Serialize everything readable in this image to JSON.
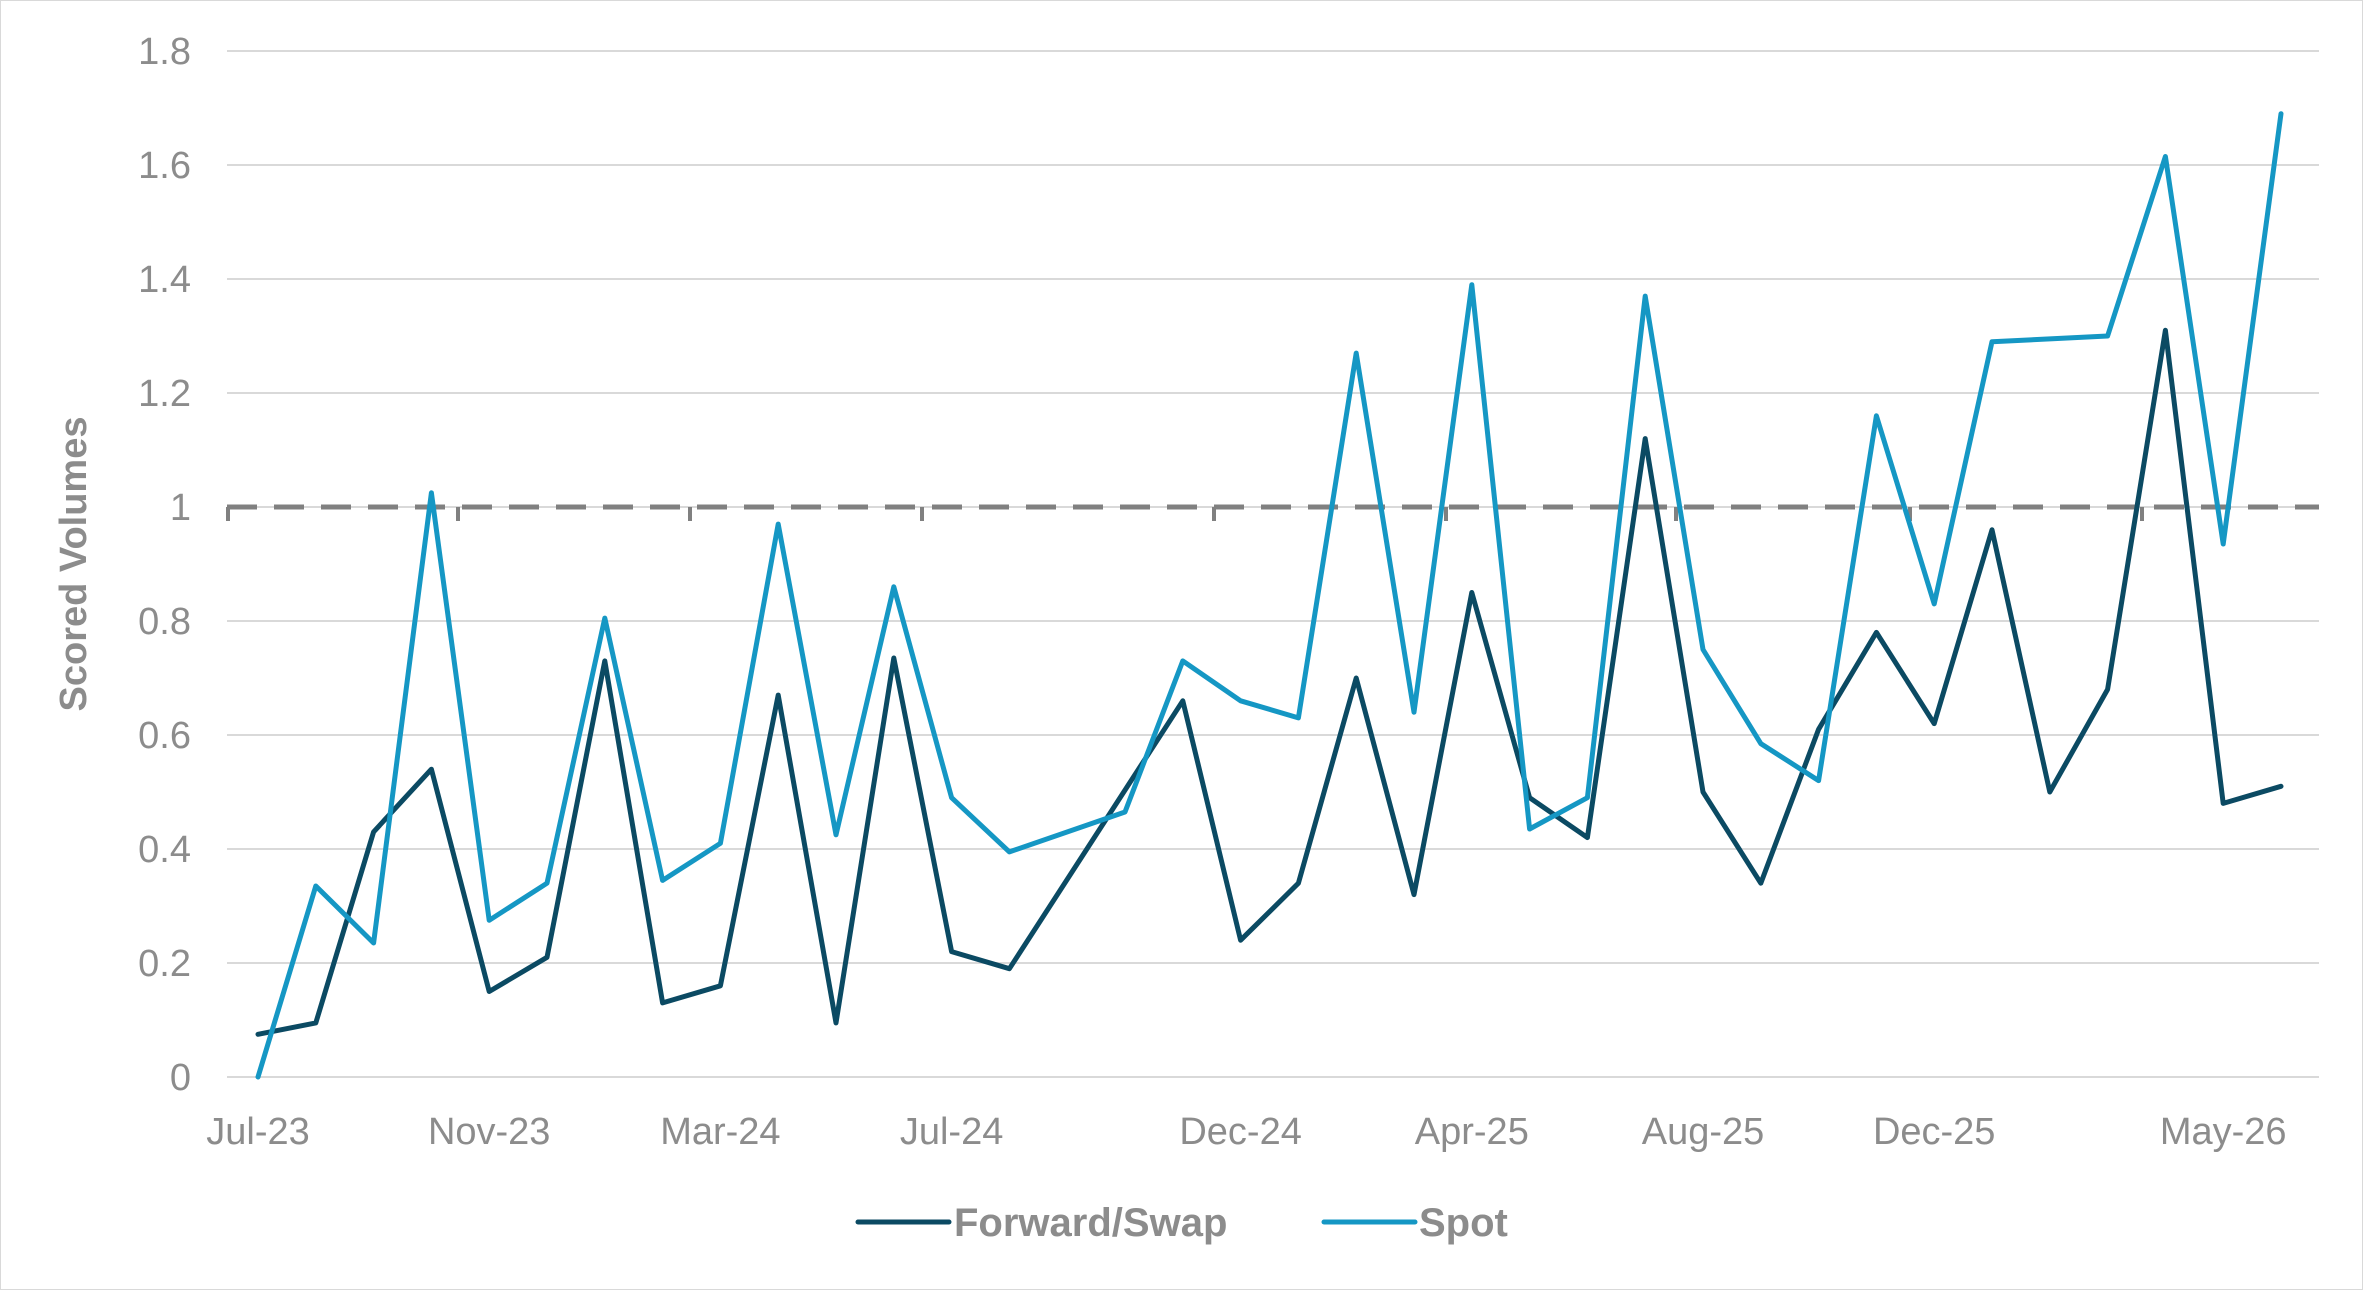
{
  "colors": {
    "forward_swap": "#0b4a63",
    "spot": "#1597c4",
    "gridline": "#d9d9d9",
    "threshold": "#808080",
    "text": "#8c8c8c"
  },
  "chart_data": {
    "type": "line",
    "title": "",
    "ylabel": "Scored Volumes",
    "xlabel": "",
    "ylim": [
      0,
      1.8
    ],
    "yticks": [
      0,
      0.2,
      0.4,
      0.6,
      0.8,
      1,
      1.2,
      1.4,
      1.6,
      1.8
    ],
    "ytick_labels": [
      "0",
      "0.2",
      "0.4",
      "0.6",
      "0.8",
      "1",
      "1.2",
      "1.4",
      "1.6",
      "1.8"
    ],
    "x_tick_labels": [
      {
        "label": "Jul-23",
        "index": 0
      },
      {
        "label": "Nov-23",
        "index": 4
      },
      {
        "label": "Mar-24",
        "index": 8
      },
      {
        "label": "Jul-24",
        "index": 12
      },
      {
        "label": "Dec-24",
        "index": 17
      },
      {
        "label": "Apr-25",
        "index": 21
      },
      {
        "label": "Aug-25",
        "index": 25
      },
      {
        "label": "Dec-25",
        "index": 29
      },
      {
        "label": "May-26",
        "index": 34
      }
    ],
    "x": [
      "Jul-23",
      "Aug-23",
      "Sep-23",
      "Oct-23",
      "Nov-23",
      "Dec-23",
      "Jan-24",
      "Feb-24",
      "Mar-24",
      "Apr-24",
      "May-24",
      "Jun-24",
      "Jul-24",
      "Aug-24",
      "Sep-24",
      "Oct-24",
      "Nov-24",
      "Dec-24",
      "Jan-25",
      "Feb-25",
      "Mar-25",
      "Apr-25",
      "May-25",
      "Jun-25",
      "Jul-25",
      "Aug-25",
      "Sep-25",
      "Oct-25",
      "Nov-25",
      "Dec-25",
      "Jan-26",
      "Feb-26",
      "Mar-26",
      "Apr-26",
      "May-26",
      "Jun-26"
    ],
    "series": [
      {
        "name": "Forward/Swap",
        "color": "#0b4a63",
        "values": [
          0.075,
          0.095,
          0.43,
          0.54,
          0.15,
          0.21,
          0.73,
          0.13,
          0.16,
          0.67,
          0.095,
          0.735,
          0.22,
          0.19,
          null,
          null,
          0.66,
          0.24,
          0.34,
          0.7,
          0.32,
          0.85,
          0.49,
          0.42,
          1.12,
          0.5,
          0.34,
          0.61,
          0.78,
          0.62,
          0.96,
          0.5,
          0.68,
          1.31,
          0.48,
          0.51
        ]
      },
      {
        "name": "Spot",
        "color": "#1597c4",
        "values": [
          0.0,
          0.335,
          0.235,
          1.025,
          0.275,
          0.34,
          0.805,
          0.345,
          0.41,
          0.97,
          0.425,
          0.86,
          0.49,
          0.395,
          null,
          0.465,
          0.73,
          0.66,
          0.63,
          1.27,
          0.64,
          1.39,
          0.435,
          0.49,
          1.37,
          0.75,
          0.585,
          0.52,
          1.16,
          0.83,
          1.29,
          1.295,
          1.3,
          1.615,
          0.935,
          1.69
        ]
      }
    ],
    "threshold": 1.0,
    "grid": true,
    "legend": {
      "position": "bottom-center",
      "entries": [
        "Forward/Swap",
        "Spot"
      ]
    }
  }
}
